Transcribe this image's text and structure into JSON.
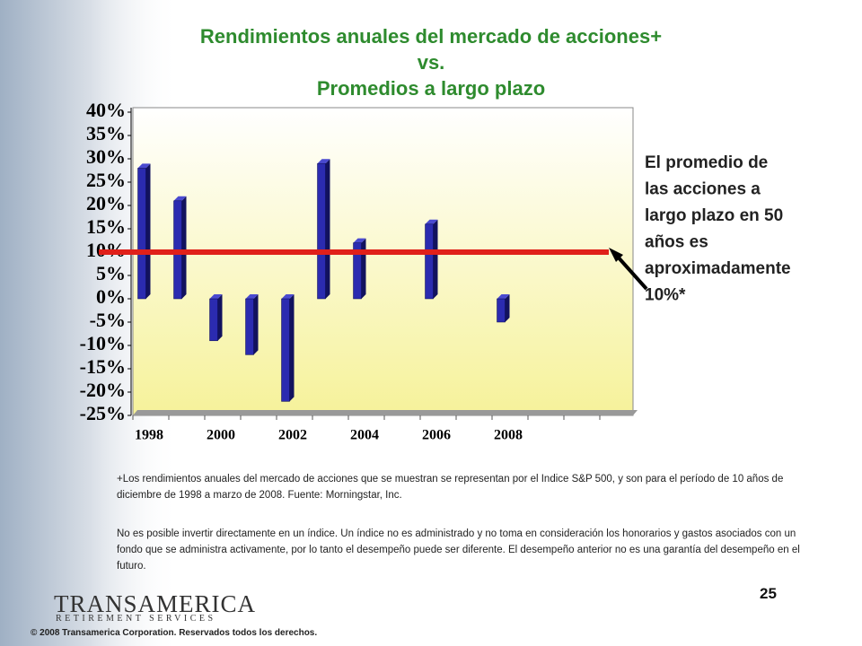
{
  "chart_data": {
    "type": "bar",
    "title_lines": [
      "Rendimientos anuales del mercado de acciones+",
      "vs.",
      "Promedios a largo plazo"
    ],
    "categories": [
      "1998",
      null,
      "2000",
      null,
      "2002",
      null,
      "2004",
      null,
      "2006",
      null,
      "2008",
      null,
      null,
      null
    ],
    "values": [
      28,
      21,
      -9,
      -12,
      -22,
      29,
      12,
      null,
      16,
      null,
      -5,
      null,
      null,
      null
    ],
    "color": "#2b2bb0",
    "ylim": [
      -25,
      40
    ],
    "yticks": [
      {
        "value": -25,
        "label": "-25%"
      },
      {
        "value": -20,
        "label": "-20%"
      },
      {
        "value": -15,
        "label": "-15%"
      },
      {
        "value": -10,
        "label": "-10%"
      },
      {
        "value": -5,
        "label": "-5%"
      },
      {
        "value": 0,
        "label": "0%"
      },
      {
        "value": 5,
        "label": "5%"
      },
      {
        "value": 10,
        "label": "10%"
      },
      {
        "value": 15,
        "label": "15%"
      },
      {
        "value": 20,
        "label": "20%"
      },
      {
        "value": 25,
        "label": "25%"
      },
      {
        "value": 30,
        "label": "30%"
      },
      {
        "value": 35,
        "label": "35%"
      },
      {
        "value": 40,
        "label": "40%"
      }
    ],
    "grid": false,
    "reference_line": {
      "value": 10,
      "color": "#e0201a"
    },
    "annotation_lines": [
      "El promedio de",
      "las acciones a",
      "largo plazo en 50",
      "años es",
      "aproximadamente",
      "10%*"
    ]
  },
  "notes": [
    "+Los rendimientos anuales del mercado de acciones que se muestran se representan por el Indice S&P 500, y son para el período de 10 años de diciembre de 1998 a marzo de 2008. Fuente: Morningstar, Inc.",
    "No es posible invertir directamente en un índice. Un índice no es administrado y no toma en consideración los honorarios y gastos asociados con un fondo que se administra activamente, por lo tanto el desempeño puede ser diferente. El desempeño anterior no es una garantía del desempeño en el futuro."
  ],
  "page_number": "25",
  "logo": {
    "name": "TRANSAMERICA",
    "tagline": "RETIREMENT SERVICES"
  },
  "copyright": "© 2008 Transamerica Corporation. Reservados todos los derechos."
}
